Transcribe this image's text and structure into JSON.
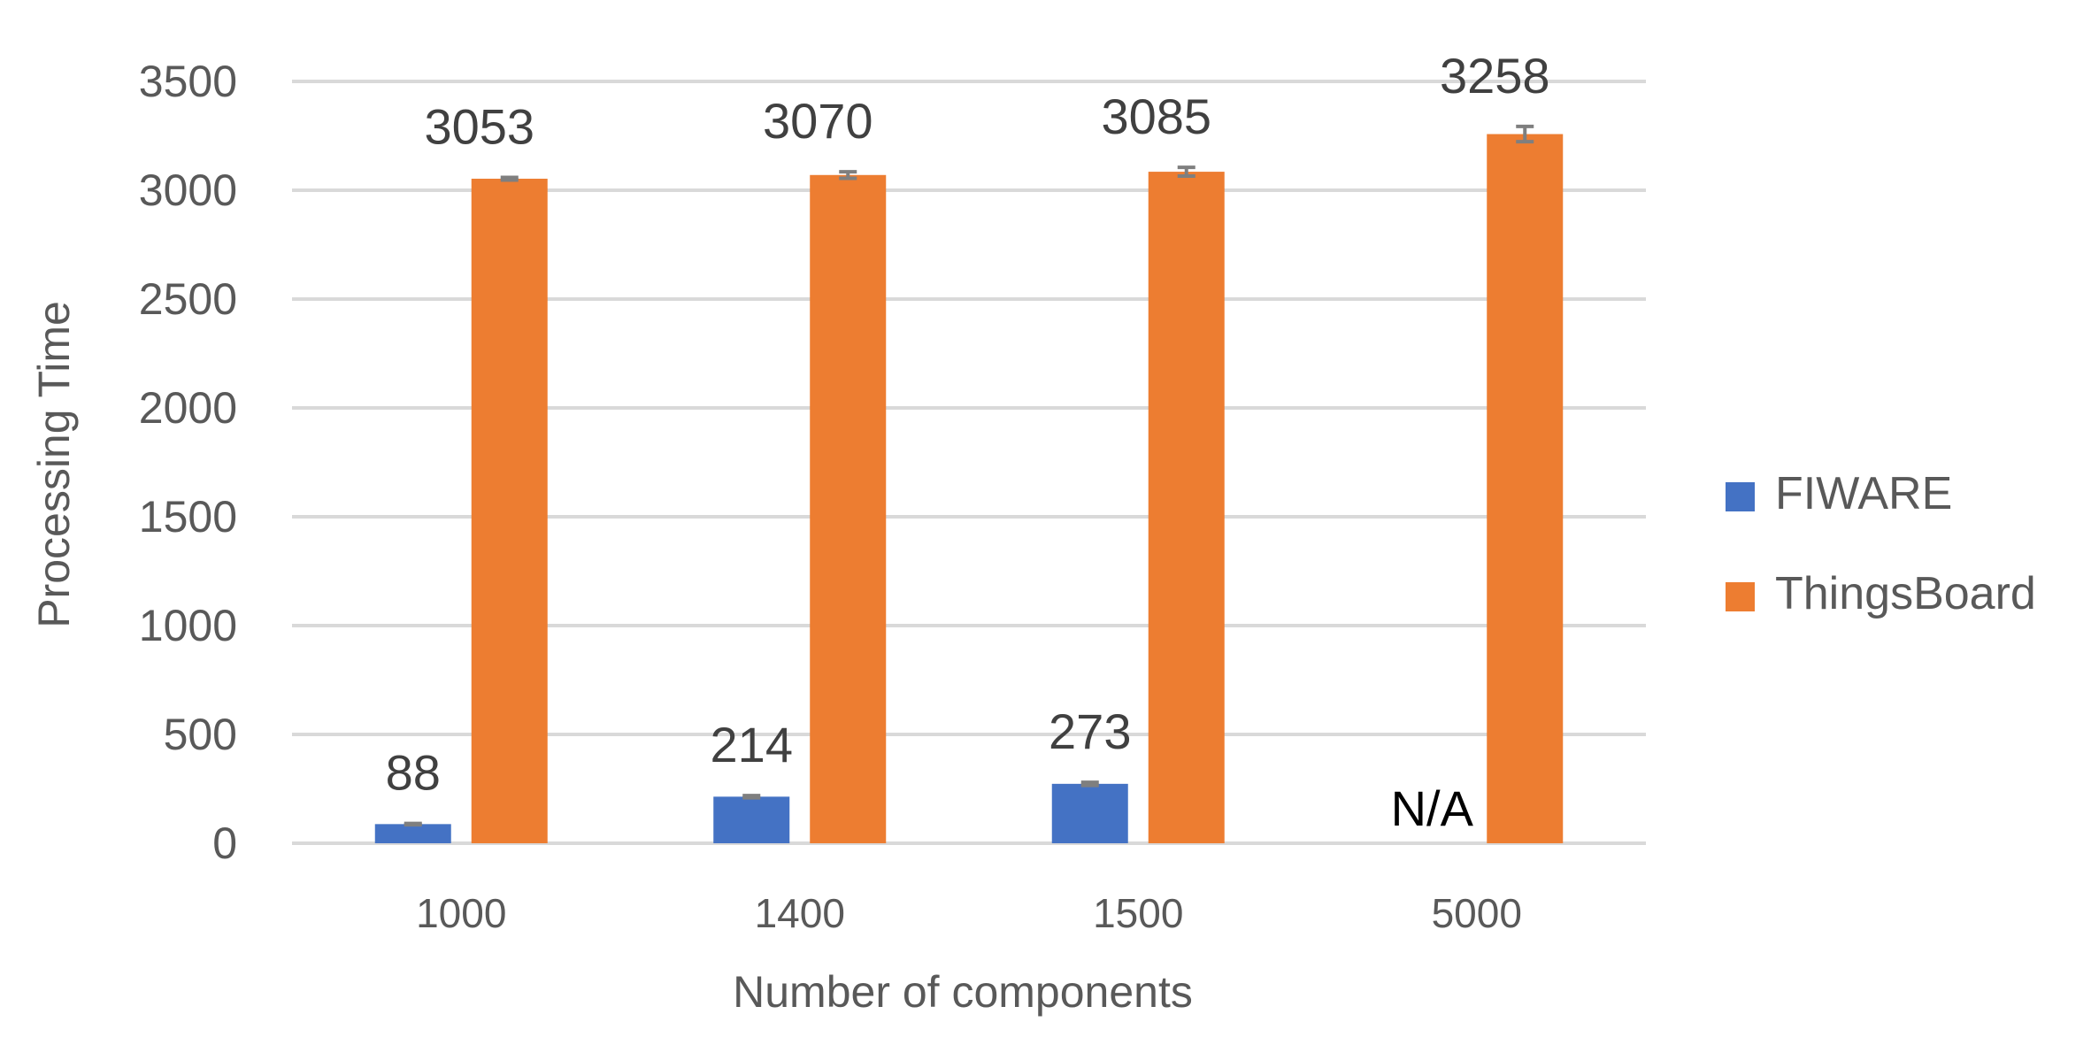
{
  "chart_data": {
    "type": "bar",
    "title": "",
    "xlabel": "Number of components",
    "ylabel": "Processing Time",
    "categories": [
      "1000",
      "1400",
      "1500",
      "5000"
    ],
    "ylim": [
      0,
      3500
    ],
    "yticks": [
      0,
      500,
      1000,
      1500,
      2000,
      2500,
      3000,
      3500
    ],
    "grid": true,
    "legend_position": "right",
    "series": [
      {
        "name": "FIWARE",
        "color": "#4472C4",
        "values": [
          88,
          214,
          273,
          null
        ],
        "labels": [
          "88",
          "214",
          "273",
          "N/A"
        ],
        "errors": [
          3,
          5,
          7,
          null
        ]
      },
      {
        "name": "ThingsBoard",
        "color": "#ED7D31",
        "values": [
          3053,
          3070,
          3085,
          3258
        ],
        "labels": [
          "3053",
          "3070",
          "3085",
          "3258"
        ],
        "errors": [
          6,
          15,
          20,
          35
        ]
      }
    ]
  }
}
